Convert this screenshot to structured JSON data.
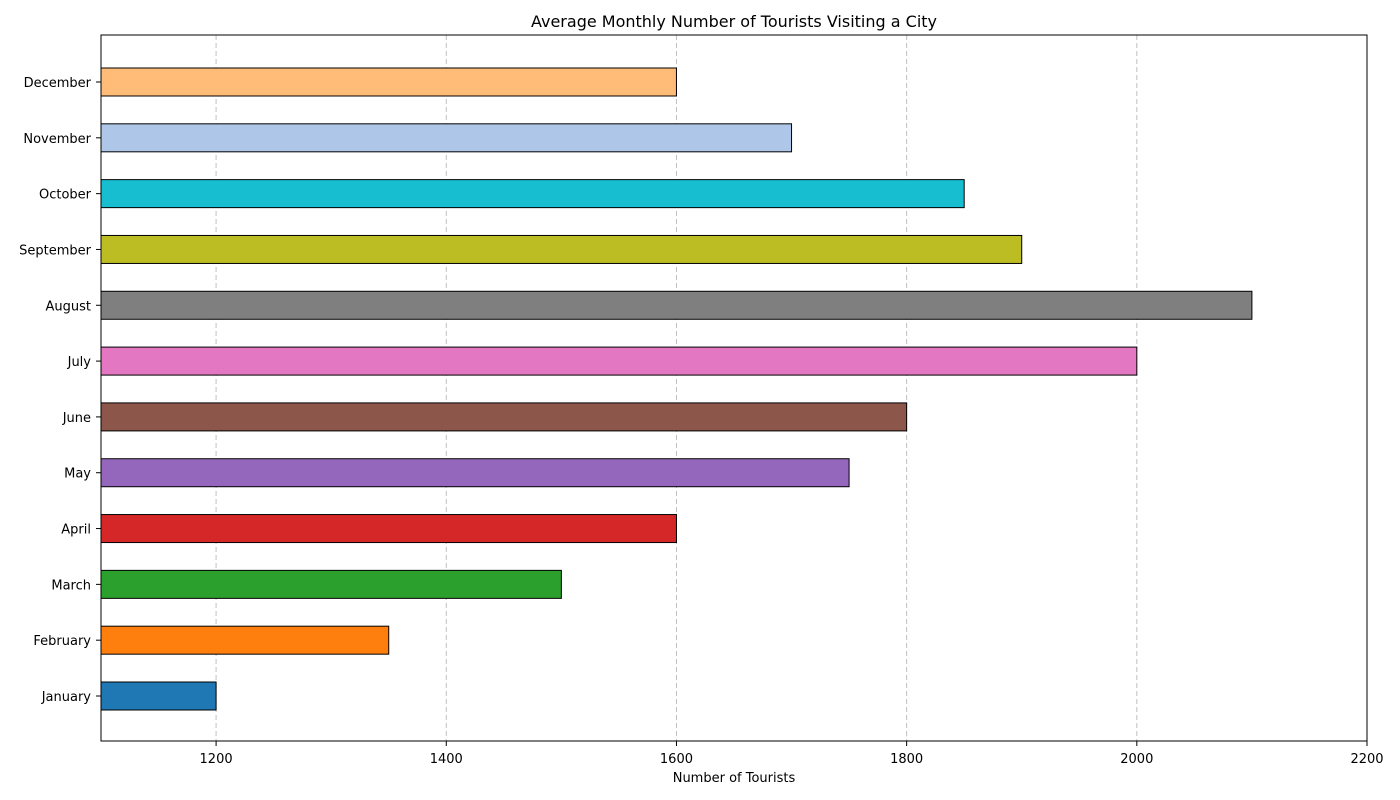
{
  "chart_data": {
    "type": "bar",
    "orientation": "horizontal",
    "title": "Average Monthly Number of Tourists Visiting a City",
    "xlabel": "Number of Tourists",
    "ylabel": "",
    "categories": [
      "January",
      "February",
      "March",
      "April",
      "May",
      "June",
      "July",
      "August",
      "September",
      "October",
      "November",
      "December"
    ],
    "values": [
      1200,
      1350,
      1500,
      1600,
      1750,
      1800,
      2000,
      2100,
      1900,
      1850,
      1700,
      1600
    ],
    "colors": [
      "#1f77b4",
      "#ff7f0e",
      "#2ca02c",
      "#d62728",
      "#9467bd",
      "#8c564b",
      "#e377c2",
      "#7f7f7f",
      "#bcbd22",
      "#17becf",
      "#aec7e8",
      "#ffbb78"
    ],
    "xlim": [
      1100,
      2200
    ],
    "xticks": [
      1200,
      1400,
      1600,
      1800,
      2000,
      2200
    ],
    "grid": "x-dashed",
    "legend": "none"
  }
}
